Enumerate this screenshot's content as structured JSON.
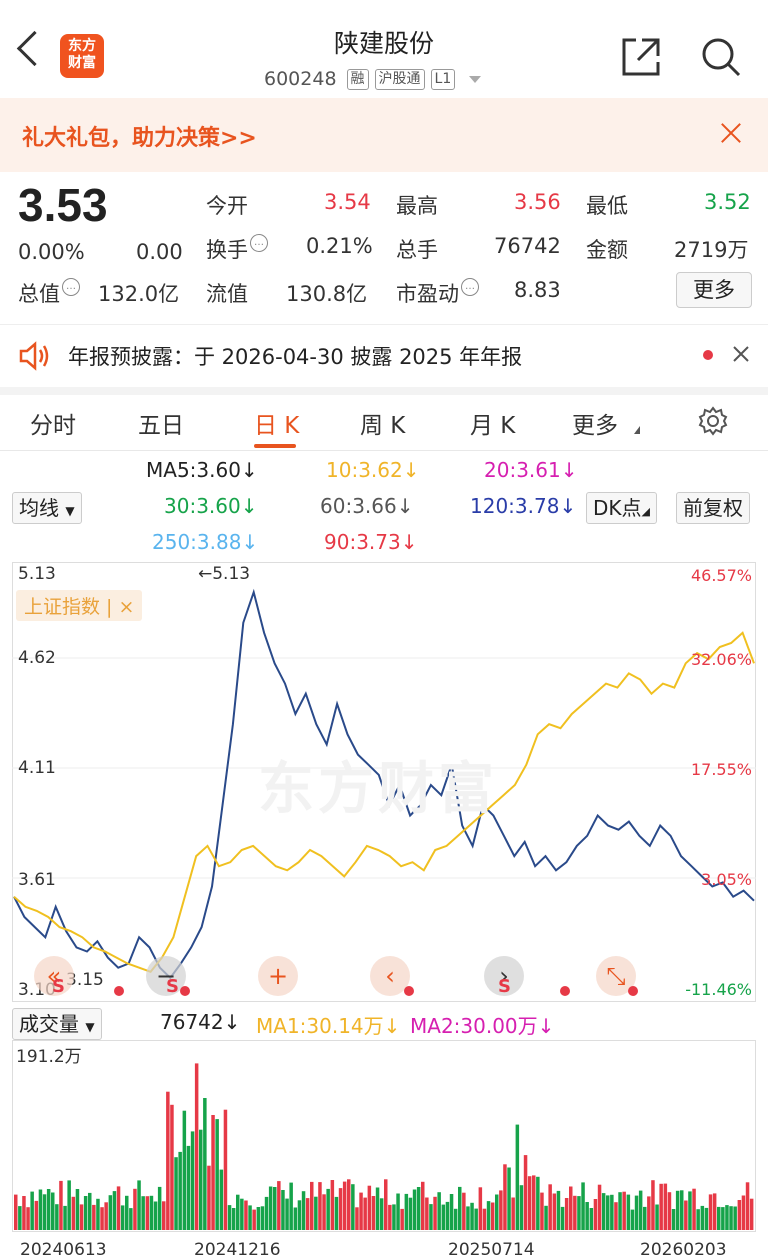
{
  "header": {
    "title": "陕建股份",
    "code": "600248",
    "tags": [
      "融",
      "沪股通",
      "L1"
    ],
    "logo_line1": "东方",
    "logo_line2": "财富",
    "icons": [
      "back-arrow-icon",
      "share-icon",
      "search-icon"
    ]
  },
  "banner": {
    "text": "礼大礼包，助力决策>>"
  },
  "quote": {
    "price": "3.53",
    "change_pct": "0.00%",
    "change": "0.00",
    "open_label": "今开",
    "open": "3.54",
    "high_label": "最高",
    "high": "3.56",
    "low_label": "最低",
    "low": "3.52",
    "turnover_label": "换手",
    "turnover": "0.21%",
    "volume_label": "总手",
    "volume": "76742",
    "amount_label": "金额",
    "amount": "2719万",
    "mktcap_label": "总值",
    "mktcap": "132.0亿",
    "float_label": "流值",
    "float": "130.8亿",
    "pe_label": "市盈动",
    "pe": "8.83",
    "more_label": "更多"
  },
  "notice": {
    "text": "年报预披露：于 2026-04-30 披露 2025 年年报"
  },
  "tabs": [
    "分时",
    "五日",
    "日 K",
    "周 K",
    "月 K",
    "更多"
  ],
  "ma": {
    "ma_select": "均线",
    "ma5": "MA5:3.60↓",
    "ma10": "10:3.62↓",
    "ma20": "20:3.61↓",
    "ma30": "30:3.60↓",
    "ma60": "60:3.66↓",
    "ma120": "120:3.78↓",
    "ma250": "250:3.88↓",
    "ma90": "90:3.73↓",
    "dk_label": "DK点",
    "fq_label": "前复权"
  },
  "chart_axis": {
    "y_labels": [
      "5.13",
      "4.62",
      "4.11",
      "3.61",
      "3.10"
    ],
    "pct_labels": [
      "46.57%",
      "32.06%",
      "17.55%",
      "3.05%",
      "-11.46%"
    ],
    "high_mark": "←5.13",
    "low_mark": "3.15",
    "index_tag": "上证指数 | ×",
    "watermark": "东方财富"
  },
  "volume_bar": {
    "select": "成交量",
    "vol": "76742↓",
    "ma1": "MA1:30.14万↓",
    "ma2": "MA2:30.00万↓",
    "max_label": "191.2万"
  },
  "dates": [
    "20240613",
    "20241216",
    "20250714",
    "20260203"
  ],
  "chart_data": {
    "type": "line",
    "ylim": [
      3.1,
      5.13
    ],
    "series": [
      {
        "name": "陕建股份",
        "values": [
          3.55,
          3.45,
          3.4,
          3.35,
          3.5,
          3.38,
          3.3,
          3.28,
          3.33,
          3.25,
          3.2,
          3.22,
          3.35,
          3.3,
          3.2,
          3.15,
          3.22,
          3.3,
          3.4,
          3.6,
          4.0,
          4.4,
          4.9,
          5.05,
          4.85,
          4.7,
          4.6,
          4.45,
          4.55,
          4.4,
          4.3,
          4.5,
          4.35,
          4.25,
          4.2,
          4.15,
          4.0,
          4.1,
          3.95,
          4.0,
          4.1,
          4.05,
          4.2,
          3.9,
          3.8,
          4.0,
          3.95,
          3.85,
          3.75,
          3.82,
          3.7,
          3.75,
          3.68,
          3.72,
          3.8,
          3.85,
          3.95,
          3.9,
          3.88,
          3.92,
          3.85,
          3.8,
          3.9,
          3.85,
          3.75,
          3.7,
          3.65,
          3.6,
          3.62,
          3.55,
          3.58,
          3.53
        ]
      },
      {
        "name": "上证指数",
        "values": [
          3.55,
          3.5,
          3.48,
          3.45,
          3.4,
          3.38,
          3.35,
          3.3,
          3.28,
          3.25,
          3.22,
          3.2,
          3.18,
          3.25,
          3.35,
          3.55,
          3.75,
          3.8,
          3.7,
          3.72,
          3.78,
          3.8,
          3.75,
          3.7,
          3.68,
          3.72,
          3.78,
          3.75,
          3.7,
          3.65,
          3.72,
          3.8,
          3.78,
          3.75,
          3.7,
          3.72,
          3.68,
          3.78,
          3.8,
          3.85,
          3.9,
          3.95,
          4.0,
          4.05,
          4.1,
          4.2,
          4.35,
          4.4,
          4.38,
          4.45,
          4.5,
          4.55,
          4.6,
          4.58,
          4.65,
          4.62,
          4.55,
          4.6,
          4.58,
          4.7,
          4.75,
          4.72,
          4.78,
          4.8,
          4.85,
          4.7
        ]
      }
    ]
  }
}
